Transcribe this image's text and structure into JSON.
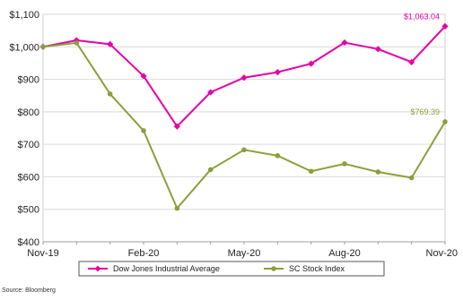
{
  "chart_data": {
    "type": "line",
    "title": "",
    "xlabel": "",
    "ylabel": "",
    "ylim": [
      400,
      1100
    ],
    "y_ticks": [
      400,
      500,
      600,
      700,
      800,
      900,
      1000,
      1100
    ],
    "y_tick_labels": [
      "$400",
      "$500",
      "$600",
      "$700",
      "$800",
      "$900",
      "$1,000",
      "$1,100"
    ],
    "x_tick_labels": [
      "Nov-19",
      "Feb-20",
      "May-20",
      "Aug-20",
      "Nov-20"
    ],
    "x_tick_positions": [
      0,
      3,
      6,
      9,
      12
    ],
    "grid": true,
    "legend_position": "bottom",
    "x_count": 13,
    "series": [
      {
        "name": "Dow Jones Industrial Average",
        "color": "#e600a8",
        "marker": "diamond",
        "values": [
          1000,
          1020,
          1008,
          910,
          755,
          860,
          905,
          922,
          948,
          1013,
          993,
          953,
          1063.04
        ],
        "end_label": "$1,063.04"
      },
      {
        "name": "SC Stock Index",
        "color": "#8aa03a",
        "marker": "circle",
        "values": [
          1000,
          1012,
          855,
          742,
          503,
          622,
          683,
          665,
          617,
          640,
          615,
          597,
          769.39
        ],
        "end_label": "$769.39"
      }
    ],
    "source_note": "Source: Bloomberg"
  }
}
